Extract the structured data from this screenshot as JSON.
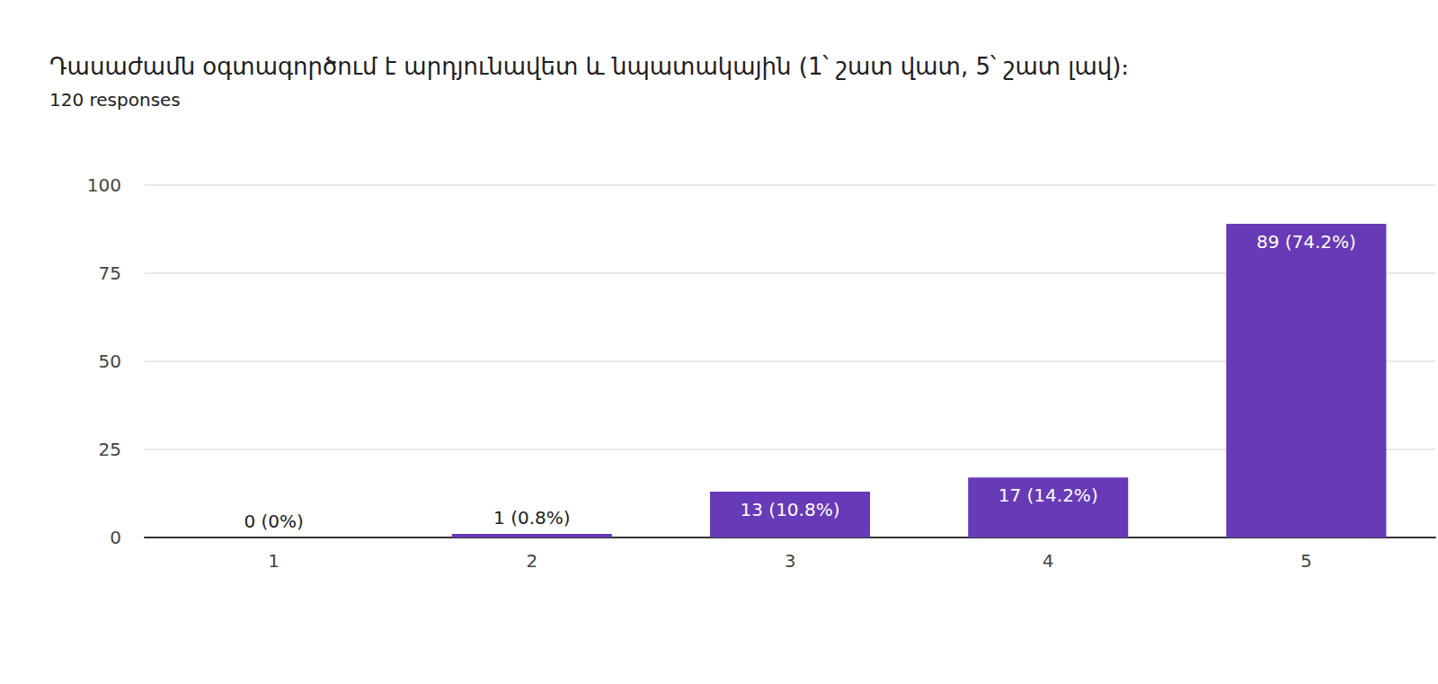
{
  "chart_data": {
    "type": "bar",
    "title": "Դասաժամն օգտագործում է արդյունավետ և նպատակային (1՝ շատ վատ, 5՝ շատ լավ)։",
    "subtitle": "120 responses",
    "categories": [
      "1",
      "2",
      "3",
      "4",
      "5"
    ],
    "values": [
      0,
      1,
      13,
      17,
      89
    ],
    "value_labels": [
      "0 (0%)",
      "1 (0.8%)",
      "13 (10.8%)",
      "17 (14.2%)",
      "89 (74.2%)"
    ],
    "data_labels": true,
    "color": "#673ab7",
    "ylim": [
      0,
      100
    ],
    "yticks": [
      0,
      25,
      50,
      75,
      100
    ],
    "grid": true
  }
}
